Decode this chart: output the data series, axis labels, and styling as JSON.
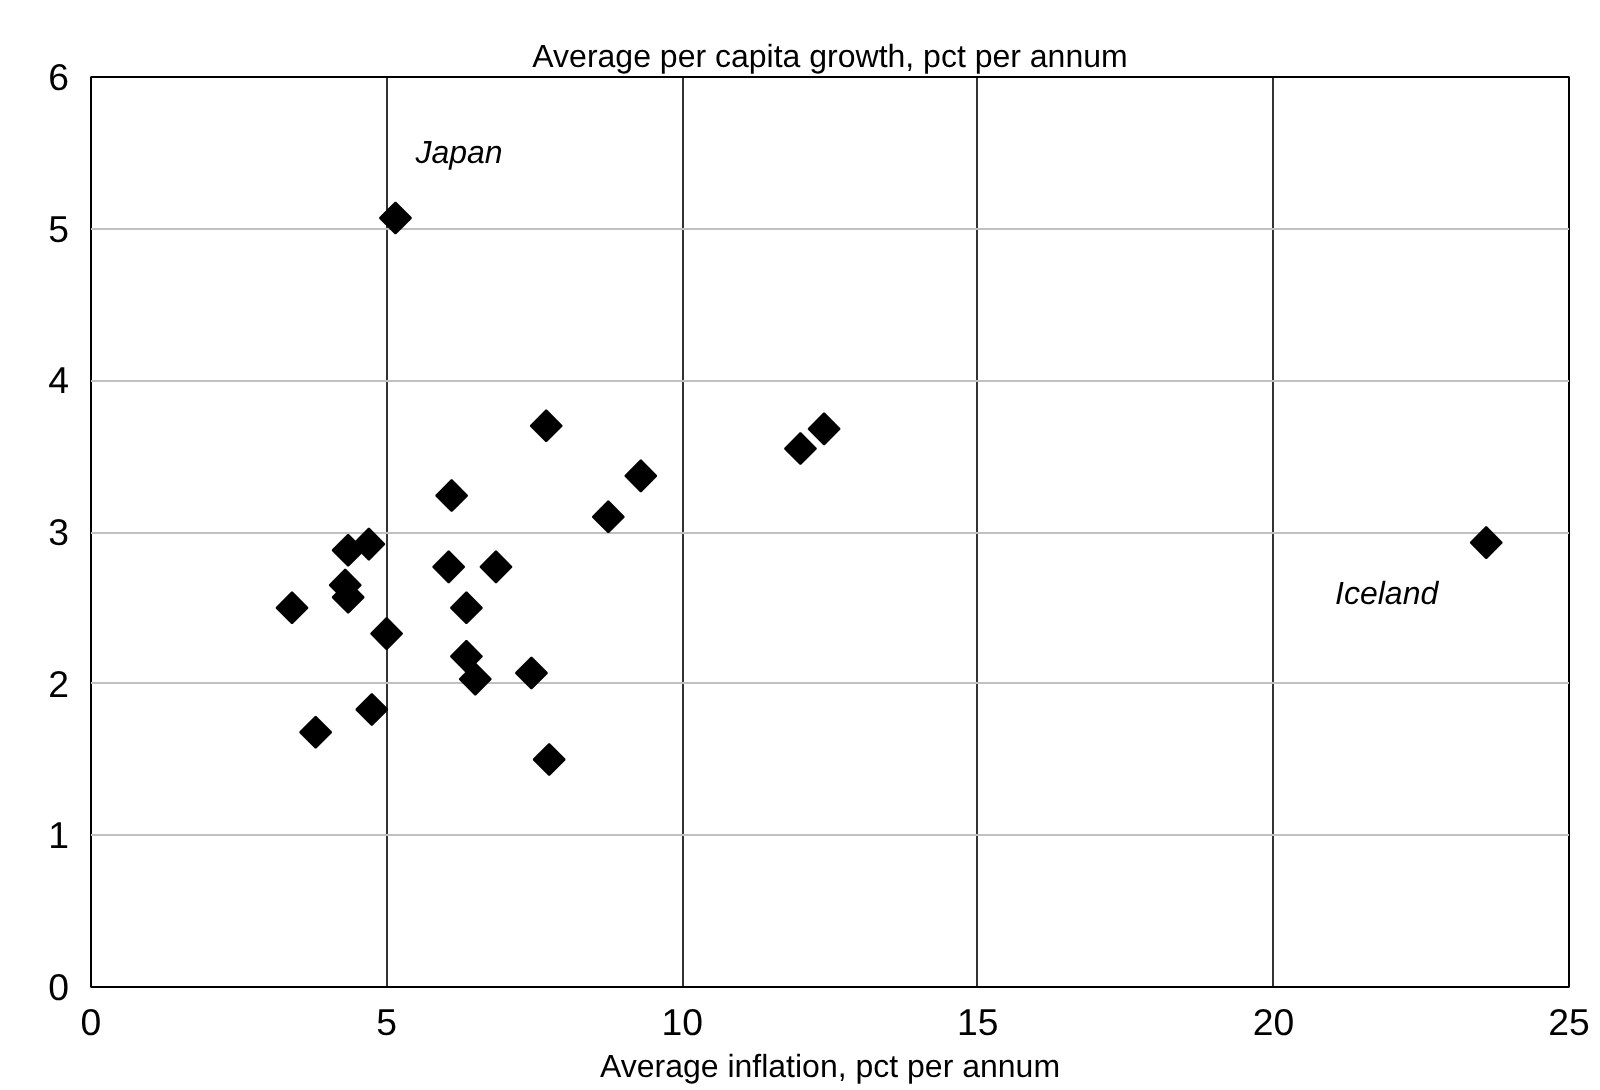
{
  "chart_data": {
    "type": "scatter",
    "title": "Average per capita growth, pct per annum",
    "xlabel": "Average inflation, pct per annum",
    "x": [
      3.4,
      3.8,
      4.3,
      4.35,
      4.35,
      4.7,
      4.75,
      5.0,
      5.15,
      6.05,
      6.1,
      6.35,
      6.35,
      6.5,
      6.85,
      7.45,
      7.7,
      7.75,
      8.75,
      9.3,
      12.0,
      12.4,
      23.6
    ],
    "values": [
      2.5,
      1.68,
      2.65,
      2.88,
      2.57,
      2.92,
      1.83,
      2.33,
      5.07,
      2.77,
      3.24,
      2.5,
      2.18,
      2.03,
      2.77,
      2.07,
      3.7,
      1.5,
      3.1,
      3.37,
      3.55,
      3.68,
      2.93
    ],
    "color": "#000000",
    "marker": "diamond",
    "xlim": [
      0,
      25
    ],
    "ylim": [
      0,
      6
    ],
    "xticks": [
      0,
      5,
      10,
      15,
      20,
      25
    ],
    "yticks": [
      0,
      1,
      2,
      3,
      4,
      5,
      6
    ],
    "grid": true,
    "annotations": [
      {
        "text": "Japan",
        "x": 5.15,
        "y": 5.07
      },
      {
        "text": "Iceland",
        "x": 23.6,
        "y": 2.93
      }
    ]
  }
}
